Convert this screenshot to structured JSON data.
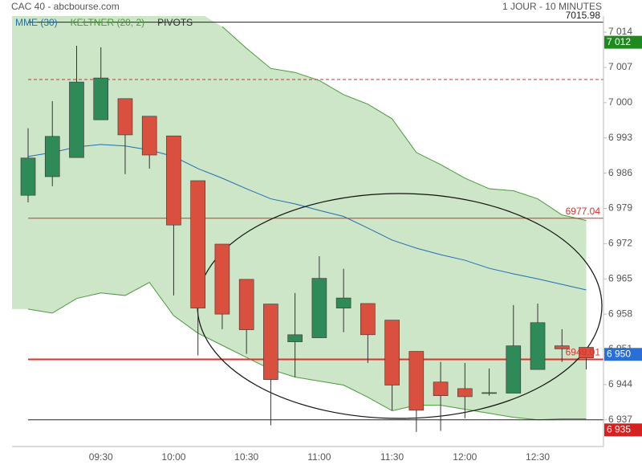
{
  "chart_data": {
    "type": "candlestick",
    "title": "CAC 40 - abcbourse.com",
    "subtitle": "1 JOUR - 10 MINUTES",
    "categories": [
      null,
      null,
      null,
      "09:30",
      null,
      null,
      "10:00",
      null,
      null,
      "10:30",
      null,
      null,
      "11:00",
      null,
      null,
      "11:30",
      null,
      null,
      "12:00",
      null,
      null,
      "12:30",
      null,
      null
    ],
    "candles": {
      "up_color": "#2e8b57",
      "down_color": "#d9503f",
      "open": [
        6981.6,
        6985.3,
        6989.1,
        6996.6,
        7000.8,
        6997.3,
        6993.4,
        6984.5,
        6971.9,
        6964.9,
        6960.0,
        6952.5,
        6953.3,
        6959.2,
        6960.1,
        6956.8,
        6950.6,
        6944.5,
        6943.2,
        6942.4,
        6942.3,
        6947.0,
        6951.7,
        6951.4
      ],
      "high": [
        6994.9,
        7000.3,
        7011.3,
        7011.0,
        7000.8,
        6997.3,
        6993.4,
        6984.5,
        6971.9,
        6964.9,
        6960.0,
        6962.2,
        6969.5,
        6967.0,
        6960.1,
        6956.8,
        6950.6,
        6948.5,
        6948.3,
        6947.2,
        6959.8,
        6960.1,
        6955.0,
        6951.4
      ],
      "low": [
        6980.2,
        6983.4,
        6989.1,
        6996.6,
        6985.8,
        6986.9,
        6961.7,
        6949.8,
        6955.0,
        6950.1,
        6935.9,
        6945.5,
        6953.3,
        6954.4,
        6948.3,
        6938.9,
        6934.6,
        6934.8,
        6937.3,
        6941.8,
        6942.3,
        6947.0,
        6948.5,
        6947.0
      ],
      "close": [
        6989.0,
        6993.3,
        7004.1,
        7004.9,
        6993.6,
        6989.6,
        6975.7,
        6959.2,
        6958.0,
        6954.9,
        6945.0,
        6953.9,
        6965.1,
        6961.2,
        6953.9,
        6943.9,
        6938.9,
        6941.8,
        6941.6,
        6942.4,
        6951.7,
        6956.3,
        6951.1,
        6949.3
      ]
    },
    "series": [
      {
        "name": "MME (30)",
        "color": "#1f6fb2",
        "values": [
          6989.3,
          6990.1,
          6991.2,
          6991.7,
          6991.4,
          6990.6,
          6989.3,
          6986.9,
          6985.0,
          6982.9,
          6980.9,
          6979.9,
          6978.6,
          6977.4,
          6975.1,
          6972.7,
          6971.1,
          6969.8,
          6968.7,
          6967.1,
          6966.0,
          6965.0,
          6963.9,
          6962.8
        ]
      },
      {
        "name": "KELTNER (20, 2)",
        "color": "#4a9a3c",
        "fill": "#cde6c8",
        "upper": [
          null,
          null,
          null,
          null,
          null,
          null,
          null,
          null,
          7015.1,
          7010.8,
          7006.8,
          7006.0,
          7004.4,
          7001.6,
          6999.7,
          6996.8,
          6990.1,
          6987.7,
          6985.0,
          6982.9,
          6982.5,
          6980.9,
          6977.7,
          6976.6
        ],
        "lower": [
          6959.0,
          6958.2,
          6961.1,
          6962.2,
          6961.7,
          6964.3,
          6957.7,
          6954.2,
          6951.8,
          6949.4,
          6947.0,
          6945.5,
          6944.7,
          6943.9,
          6941.5,
          6938.8,
          6939.9,
          6939.9,
          6939.1,
          6938.3,
          6937.5,
          6937.0,
          6937.2,
          6937.2
        ]
      },
      {
        "name": "PIVOTS",
        "color": "#333333"
      }
    ],
    "pivots": [
      {
        "value": 7015.98,
        "label": "7015.98",
        "color": "#222222"
      },
      {
        "value": 7004.6,
        "color": "#c0392b",
        "dashed": true
      },
      {
        "value": 6977.04,
        "label": "6977.04",
        "color": "#d9302a"
      },
      {
        "value": 6949.01,
        "label": "6949.01",
        "color": "#e0302a",
        "thick": true
      },
      {
        "value": 6937.0,
        "color": "#222222"
      }
    ],
    "price_tags": [
      {
        "value": 7012,
        "label": "7 012",
        "color": "#1e8a1e"
      },
      {
        "value": 6950,
        "label": "6 950",
        "color": "#2a6fd6"
      },
      {
        "value": 6935,
        "label": "6 935",
        "color": "#d92020"
      }
    ],
    "ylim": [
      6931.7,
      7017.2
    ],
    "yticks": [
      {
        "value": 7014,
        "label": "7 014"
      },
      {
        "value": 7007,
        "label": "7 007"
      },
      {
        "value": 7000,
        "label": "7 000"
      },
      {
        "value": 6993,
        "label": "6 993"
      },
      {
        "value": 6986,
        "label": "6 986"
      },
      {
        "value": 6979,
        "label": "6 979"
      },
      {
        "value": 6972,
        "label": "6 972"
      },
      {
        "value": 6965,
        "label": "6 965"
      },
      {
        "value": 6958,
        "label": "6 958"
      },
      {
        "value": 6951,
        "label": "6 951"
      },
      {
        "value": 6944,
        "label": "6 944"
      },
      {
        "value": 6937,
        "label": "6 937"
      }
    ]
  }
}
